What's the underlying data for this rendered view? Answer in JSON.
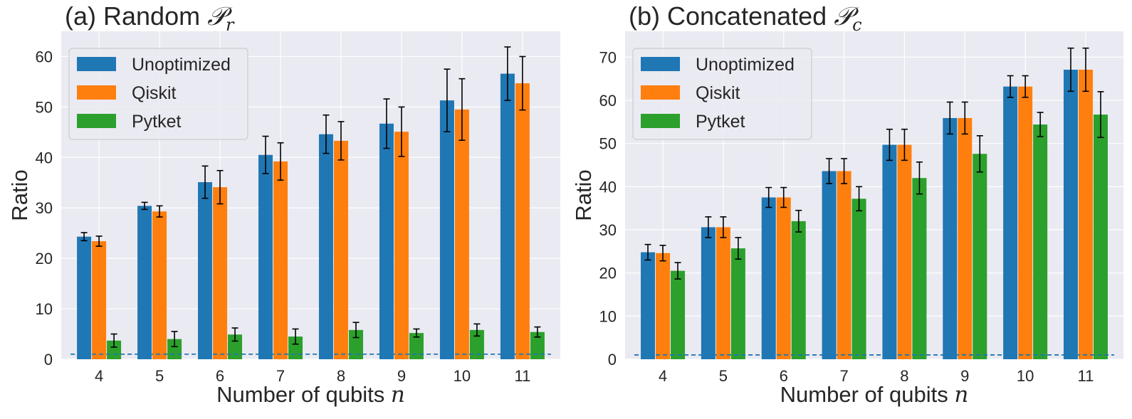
{
  "chart_data": [
    {
      "type": "bar",
      "title_prefix": "(a) Random ",
      "title_symbol": "𝒫",
      "title_subscript": "r",
      "xlabel_prefix": "Number of qubits ",
      "xlabel_symbol": "n",
      "ylabel": "Ratio",
      "categories": [
        "4",
        "5",
        "6",
        "7",
        "8",
        "9",
        "10",
        "11"
      ],
      "ylim": [
        0,
        65
      ],
      "yticks": [
        0,
        10,
        20,
        30,
        40,
        50,
        60
      ],
      "grid": true,
      "legend_position": "top-left",
      "reference_line": 1,
      "series": [
        {
          "name": "Unoptimized",
          "color": "#1f77b4",
          "values": [
            24.3,
            30.4,
            35.1,
            40.5,
            44.6,
            46.7,
            51.3,
            56.6
          ],
          "errors": [
            0.8,
            0.7,
            3.2,
            3.7,
            3.8,
            4.9,
            6.2,
            5.3
          ]
        },
        {
          "name": "Qiskit",
          "color": "#ff7f0e",
          "values": [
            23.4,
            29.3,
            34.1,
            39.2,
            43.3,
            45.1,
            49.5,
            54.7
          ],
          "errors": [
            1.0,
            1.1,
            3.3,
            3.7,
            3.8,
            4.9,
            6.1,
            5.3
          ]
        },
        {
          "name": "Pytket",
          "color": "#2ca02c",
          "values": [
            3.7,
            4.0,
            4.9,
            4.5,
            5.8,
            5.2,
            5.8,
            5.4
          ],
          "errors": [
            1.3,
            1.5,
            1.3,
            1.5,
            1.5,
            0.8,
            1.2,
            1.0
          ]
        }
      ]
    },
    {
      "type": "bar",
      "title_prefix": "(b) Concatenated ",
      "title_symbol": "𝒫",
      "title_subscript": "c",
      "xlabel_prefix": "Number of qubits ",
      "xlabel_symbol": "n",
      "ylabel": "Ratio",
      "categories": [
        "4",
        "5",
        "6",
        "7",
        "8",
        "9",
        "10",
        "11"
      ],
      "ylim": [
        0,
        76
      ],
      "yticks": [
        0,
        10,
        20,
        30,
        40,
        50,
        60,
        70
      ],
      "grid": true,
      "legend_position": "top-left",
      "reference_line": 1,
      "series": [
        {
          "name": "Unoptimized",
          "color": "#1f77b4",
          "values": [
            24.8,
            30.6,
            37.5,
            43.6,
            49.7,
            55.9,
            63.2,
            67.1
          ],
          "errors": [
            1.8,
            2.4,
            2.3,
            2.9,
            3.6,
            3.7,
            2.5,
            5.0
          ]
        },
        {
          "name": "Qiskit",
          "color": "#ff7f0e",
          "values": [
            24.6,
            30.6,
            37.5,
            43.6,
            49.7,
            55.9,
            63.2,
            67.1
          ],
          "errors": [
            1.8,
            2.4,
            2.3,
            2.9,
            3.6,
            3.7,
            2.5,
            5.0
          ]
        },
        {
          "name": "Pytket",
          "color": "#2ca02c",
          "values": [
            20.5,
            25.7,
            32.0,
            37.2,
            42.0,
            47.6,
            54.4,
            56.7
          ],
          "errors": [
            1.9,
            2.5,
            2.5,
            2.8,
            3.7,
            4.2,
            2.8,
            5.3
          ]
        }
      ]
    }
  ]
}
